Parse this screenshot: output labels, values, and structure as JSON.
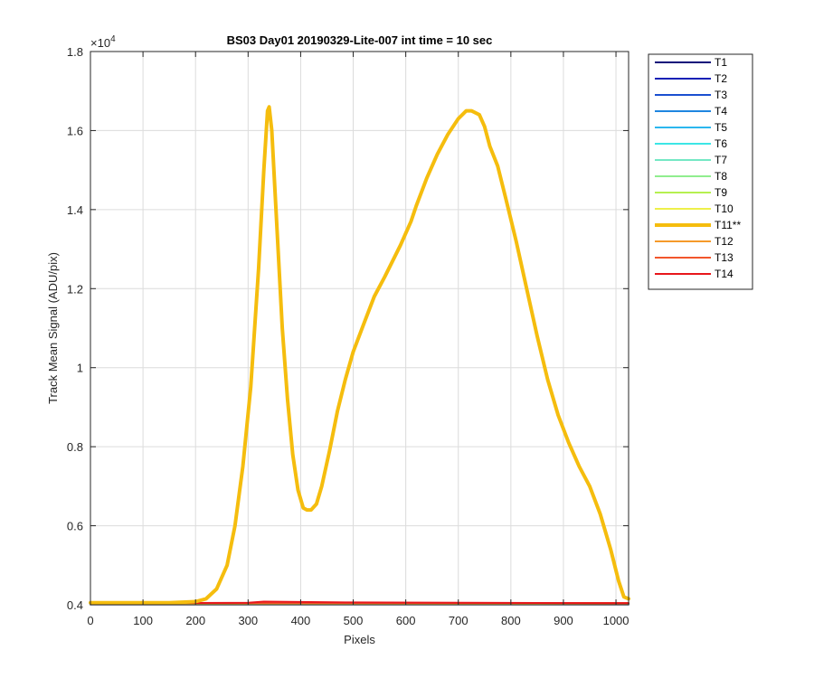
{
  "chart_data": {
    "type": "line",
    "title": "BS03 Day01 20190329-Lite-007 int time = 10 sec",
    "xlabel": "Pixels",
    "ylabel": "Track Mean Signal (ADU/pix)",
    "y_exponent_label": "×10",
    "y_exponent_power": "4",
    "xlim": [
      0,
      1024
    ],
    "ylim": [
      4000,
      18000
    ],
    "x_ticks": [
      0,
      100,
      200,
      300,
      400,
      500,
      600,
      700,
      800,
      900,
      1000
    ],
    "x_tick_labels": [
      "0",
      "100",
      "200",
      "300",
      "400",
      "500",
      "600",
      "700",
      "800",
      "900",
      "1000"
    ],
    "y_ticks": [
      4000,
      6000,
      8000,
      10000,
      12000,
      14000,
      16000,
      18000
    ],
    "y_tick_labels": [
      "0.4",
      "0.6",
      "0.8",
      "1",
      "1.2",
      "1.4",
      "1.6",
      "1.8"
    ],
    "grid": true,
    "legend_position": "outside-right",
    "series": [
      {
        "name": "T1",
        "color": "#0b0b7a",
        "width": 2,
        "x": [
          0,
          1024
        ],
        "y": [
          4010,
          4010
        ]
      },
      {
        "name": "T2",
        "color": "#1220b5",
        "width": 2,
        "x": [
          0,
          1024
        ],
        "y": [
          4015,
          4015
        ]
      },
      {
        "name": "T3",
        "color": "#1a4fd0",
        "width": 2,
        "x": [
          0,
          1024
        ],
        "y": [
          4020,
          4020
        ]
      },
      {
        "name": "T4",
        "color": "#1f86e0",
        "width": 2,
        "x": [
          0,
          1024
        ],
        "y": [
          4020,
          4020
        ]
      },
      {
        "name": "T5",
        "color": "#2bb7ee",
        "width": 2,
        "x": [
          0,
          1024
        ],
        "y": [
          4025,
          4025
        ]
      },
      {
        "name": "T6",
        "color": "#3ce6e6",
        "width": 2,
        "x": [
          0,
          1024
        ],
        "y": [
          4025,
          4025
        ]
      },
      {
        "name": "T7",
        "color": "#74e8c4",
        "width": 2,
        "x": [
          0,
          1024
        ],
        "y": [
          4030,
          4030
        ]
      },
      {
        "name": "T8",
        "color": "#90ee8e",
        "width": 2,
        "x": [
          0,
          1024
        ],
        "y": [
          4030,
          4030
        ]
      },
      {
        "name": "T9",
        "color": "#b6f050",
        "width": 2,
        "x": [
          0,
          1024
        ],
        "y": [
          4030,
          4030
        ]
      },
      {
        "name": "T10",
        "color": "#eef04a",
        "width": 2,
        "x": [
          0,
          1024
        ],
        "y": [
          4035,
          4035
        ]
      },
      {
        "name": "T11**",
        "color": "#f5bd0e",
        "width": 4,
        "x": [
          0,
          150,
          200,
          220,
          240,
          260,
          275,
          290,
          305,
          320,
          330,
          337,
          340,
          345,
          355,
          365,
          375,
          385,
          395,
          405,
          412,
          420,
          430,
          440,
          455,
          470,
          485,
          500,
          520,
          540,
          560,
          575,
          590,
          600,
          610,
          620,
          640,
          660,
          680,
          700,
          715,
          725,
          740,
          750,
          760,
          775,
          790,
          810,
          830,
          850,
          870,
          890,
          910,
          930,
          950,
          970,
          990,
          1005,
          1015,
          1024
        ],
        "y": [
          4050,
          4050,
          4080,
          4150,
          4400,
          5000,
          6000,
          7500,
          9500,
          12500,
          15000,
          16500,
          16600,
          16000,
          13500,
          11000,
          9200,
          7800,
          6900,
          6450,
          6400,
          6400,
          6550,
          7000,
          7900,
          8900,
          9700,
          10400,
          11100,
          11800,
          12300,
          12700,
          13100,
          13400,
          13700,
          14100,
          14800,
          15400,
          15900,
          16300,
          16500,
          16500,
          16400,
          16100,
          15600,
          15100,
          14300,
          13200,
          12000,
          10800,
          9700,
          8800,
          8100,
          7500,
          7000,
          6300,
          5400,
          4600,
          4200,
          4150
        ]
      },
      {
        "name": "T12",
        "color": "#f59a2a",
        "width": 2,
        "x": [
          0,
          1024
        ],
        "y": [
          4040,
          4040
        ]
      },
      {
        "name": "T13",
        "color": "#f2562c",
        "width": 2,
        "x": [
          0,
          1024
        ],
        "y": [
          4045,
          4045
        ]
      },
      {
        "name": "T14",
        "color": "#e8161b",
        "width": 2,
        "x": [
          0,
          300,
          330,
          500,
          1024
        ],
        "y": [
          4040,
          4050,
          4080,
          4060,
          4040
        ]
      }
    ]
  }
}
